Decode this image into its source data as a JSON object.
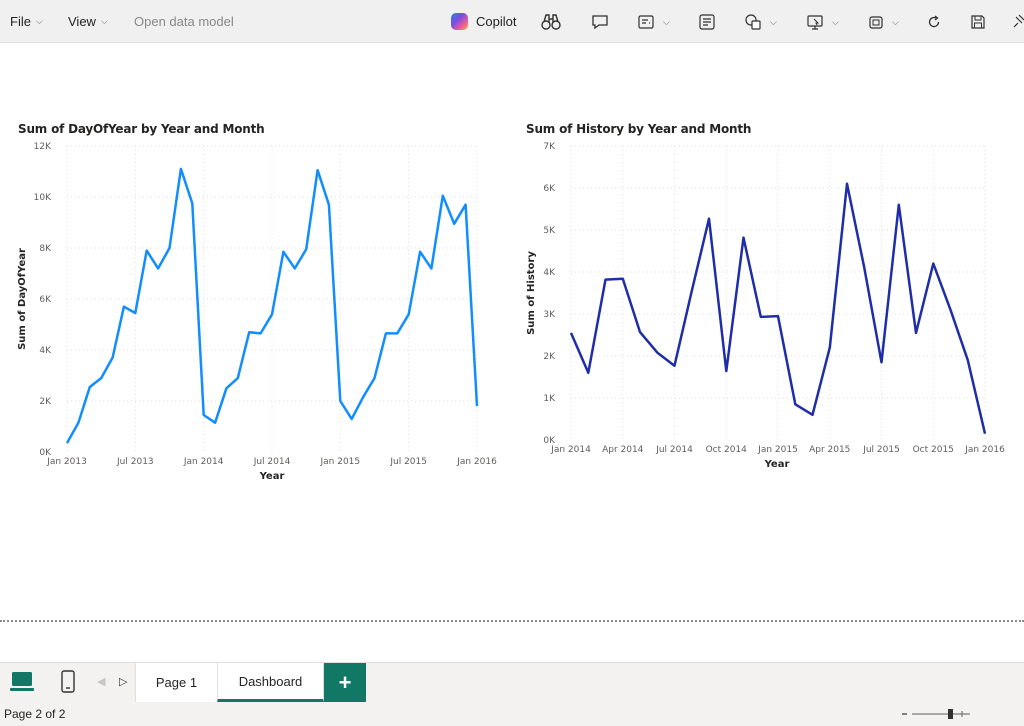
{
  "toolbar": {
    "file_label": "File",
    "view_label": "View",
    "open_model_label": "Open data model",
    "copilot_label": "Copilot",
    "icons": [
      "binoculars-icon",
      "comment-icon",
      "visual-icon",
      "text-icon",
      "shapes-icon",
      "present-icon",
      "window-icon",
      "refresh-icon",
      "save-icon",
      "pin-icon"
    ]
  },
  "charts": [
    {
      "title": "Sum of DayOfYear by Year and Month",
      "xlabel": "Year",
      "ylabel": "Sum of DayOfYear",
      "y_ticks": [
        "0K",
        "2K",
        "4K",
        "6K",
        "8K",
        "10K",
        "12K"
      ],
      "x_ticks": [
        "Jan 2013",
        "Jul 2013",
        "Jan 2014",
        "Jul 2014",
        "Jan 2015",
        "Jul 2015",
        "Jan 2016"
      ]
    },
    {
      "title": "Sum of History by Year and Month",
      "xlabel": "Year",
      "ylabel": "Sum of History",
      "y_ticks": [
        "0K",
        "1K",
        "2K",
        "3K",
        "4K",
        "5K",
        "6K",
        "7K"
      ],
      "x_ticks": [
        "Jan 2014",
        "Apr 2014",
        "Jul 2014",
        "Oct 2014",
        "Jan 2015",
        "Apr 2015",
        "Jul 2015",
        "Oct 2015",
        "Jan 2016"
      ]
    }
  ],
  "chart_data": [
    {
      "type": "line",
      "title": "Sum of DayOfYear by Year and Month",
      "xlabel": "Year",
      "ylabel": "Sum of DayOfYear",
      "ylim": [
        0,
        12000
      ],
      "color": "#118dff",
      "x": [
        "Jan 2013",
        "Feb 2013",
        "Mar 2013",
        "Apr 2013",
        "May 2013",
        "Jun 2013",
        "Jul 2013",
        "Aug 2013",
        "Sep 2013",
        "Oct 2013",
        "Nov 2013",
        "Dec 2013",
        "Jan 2014",
        "Feb 2014",
        "Mar 2014",
        "Apr 2014",
        "May 2014",
        "Jun 2014",
        "Jul 2014",
        "Aug 2014",
        "Sep 2014",
        "Oct 2014",
        "Nov 2014",
        "Dec 2014",
        "Jan 2015",
        "Feb 2015",
        "Mar 2015",
        "Apr 2015",
        "May 2015",
        "Jun 2015",
        "Jul 2015",
        "Aug 2015",
        "Sep 2015",
        "Oct 2015",
        "Nov 2015",
        "Dec 2015",
        "Jan 2016"
      ],
      "values": [
        350,
        1150,
        2550,
        2900,
        3700,
        5700,
        5450,
        7900,
        7200,
        8000,
        11100,
        9750,
        1450,
        1150,
        2500,
        2900,
        4700,
        4650,
        5400,
        7850,
        7200,
        7950,
        11050,
        9700,
        2000,
        1300,
        2150,
        2900,
        4650,
        4650,
        5400,
        7850,
        7200,
        10050,
        8950,
        9700,
        1800
      ]
    },
    {
      "type": "line",
      "title": "Sum of History by Year and Month",
      "xlabel": "Year",
      "ylabel": "Sum of History",
      "ylim": [
        0,
        7000
      ],
      "color": "#1f2ea8",
      "x": [
        "Jan 2014",
        "Feb 2014",
        "Mar 2014",
        "Apr 2014",
        "May 2014",
        "Jun 2014",
        "Jul 2014",
        "Aug 2014",
        "Sep 2014",
        "Oct 2014",
        "Nov 2014",
        "Dec 2014",
        "Jan 2015",
        "Feb 2015",
        "Mar 2015",
        "Apr 2015",
        "May 2015",
        "Jun 2015",
        "Jul 2015",
        "Aug 2015",
        "Sep 2015",
        "Oct 2015",
        "Nov 2015",
        "Dec 2015",
        "Jan 2016"
      ],
      "values": [
        2550,
        1600,
        3820,
        3840,
        2570,
        2080,
        1770,
        3550,
        5270,
        1640,
        4820,
        2930,
        2950,
        850,
        600,
        2200,
        6100,
        4100,
        1850,
        5600,
        2550,
        4200,
        3100,
        1900,
        150
      ]
    }
  ],
  "tabs": {
    "items": [
      {
        "label": "Page 1"
      },
      {
        "label": "Dashboard"
      }
    ],
    "add_label": "+"
  },
  "status": {
    "page_info": "Page 2 of 2"
  }
}
